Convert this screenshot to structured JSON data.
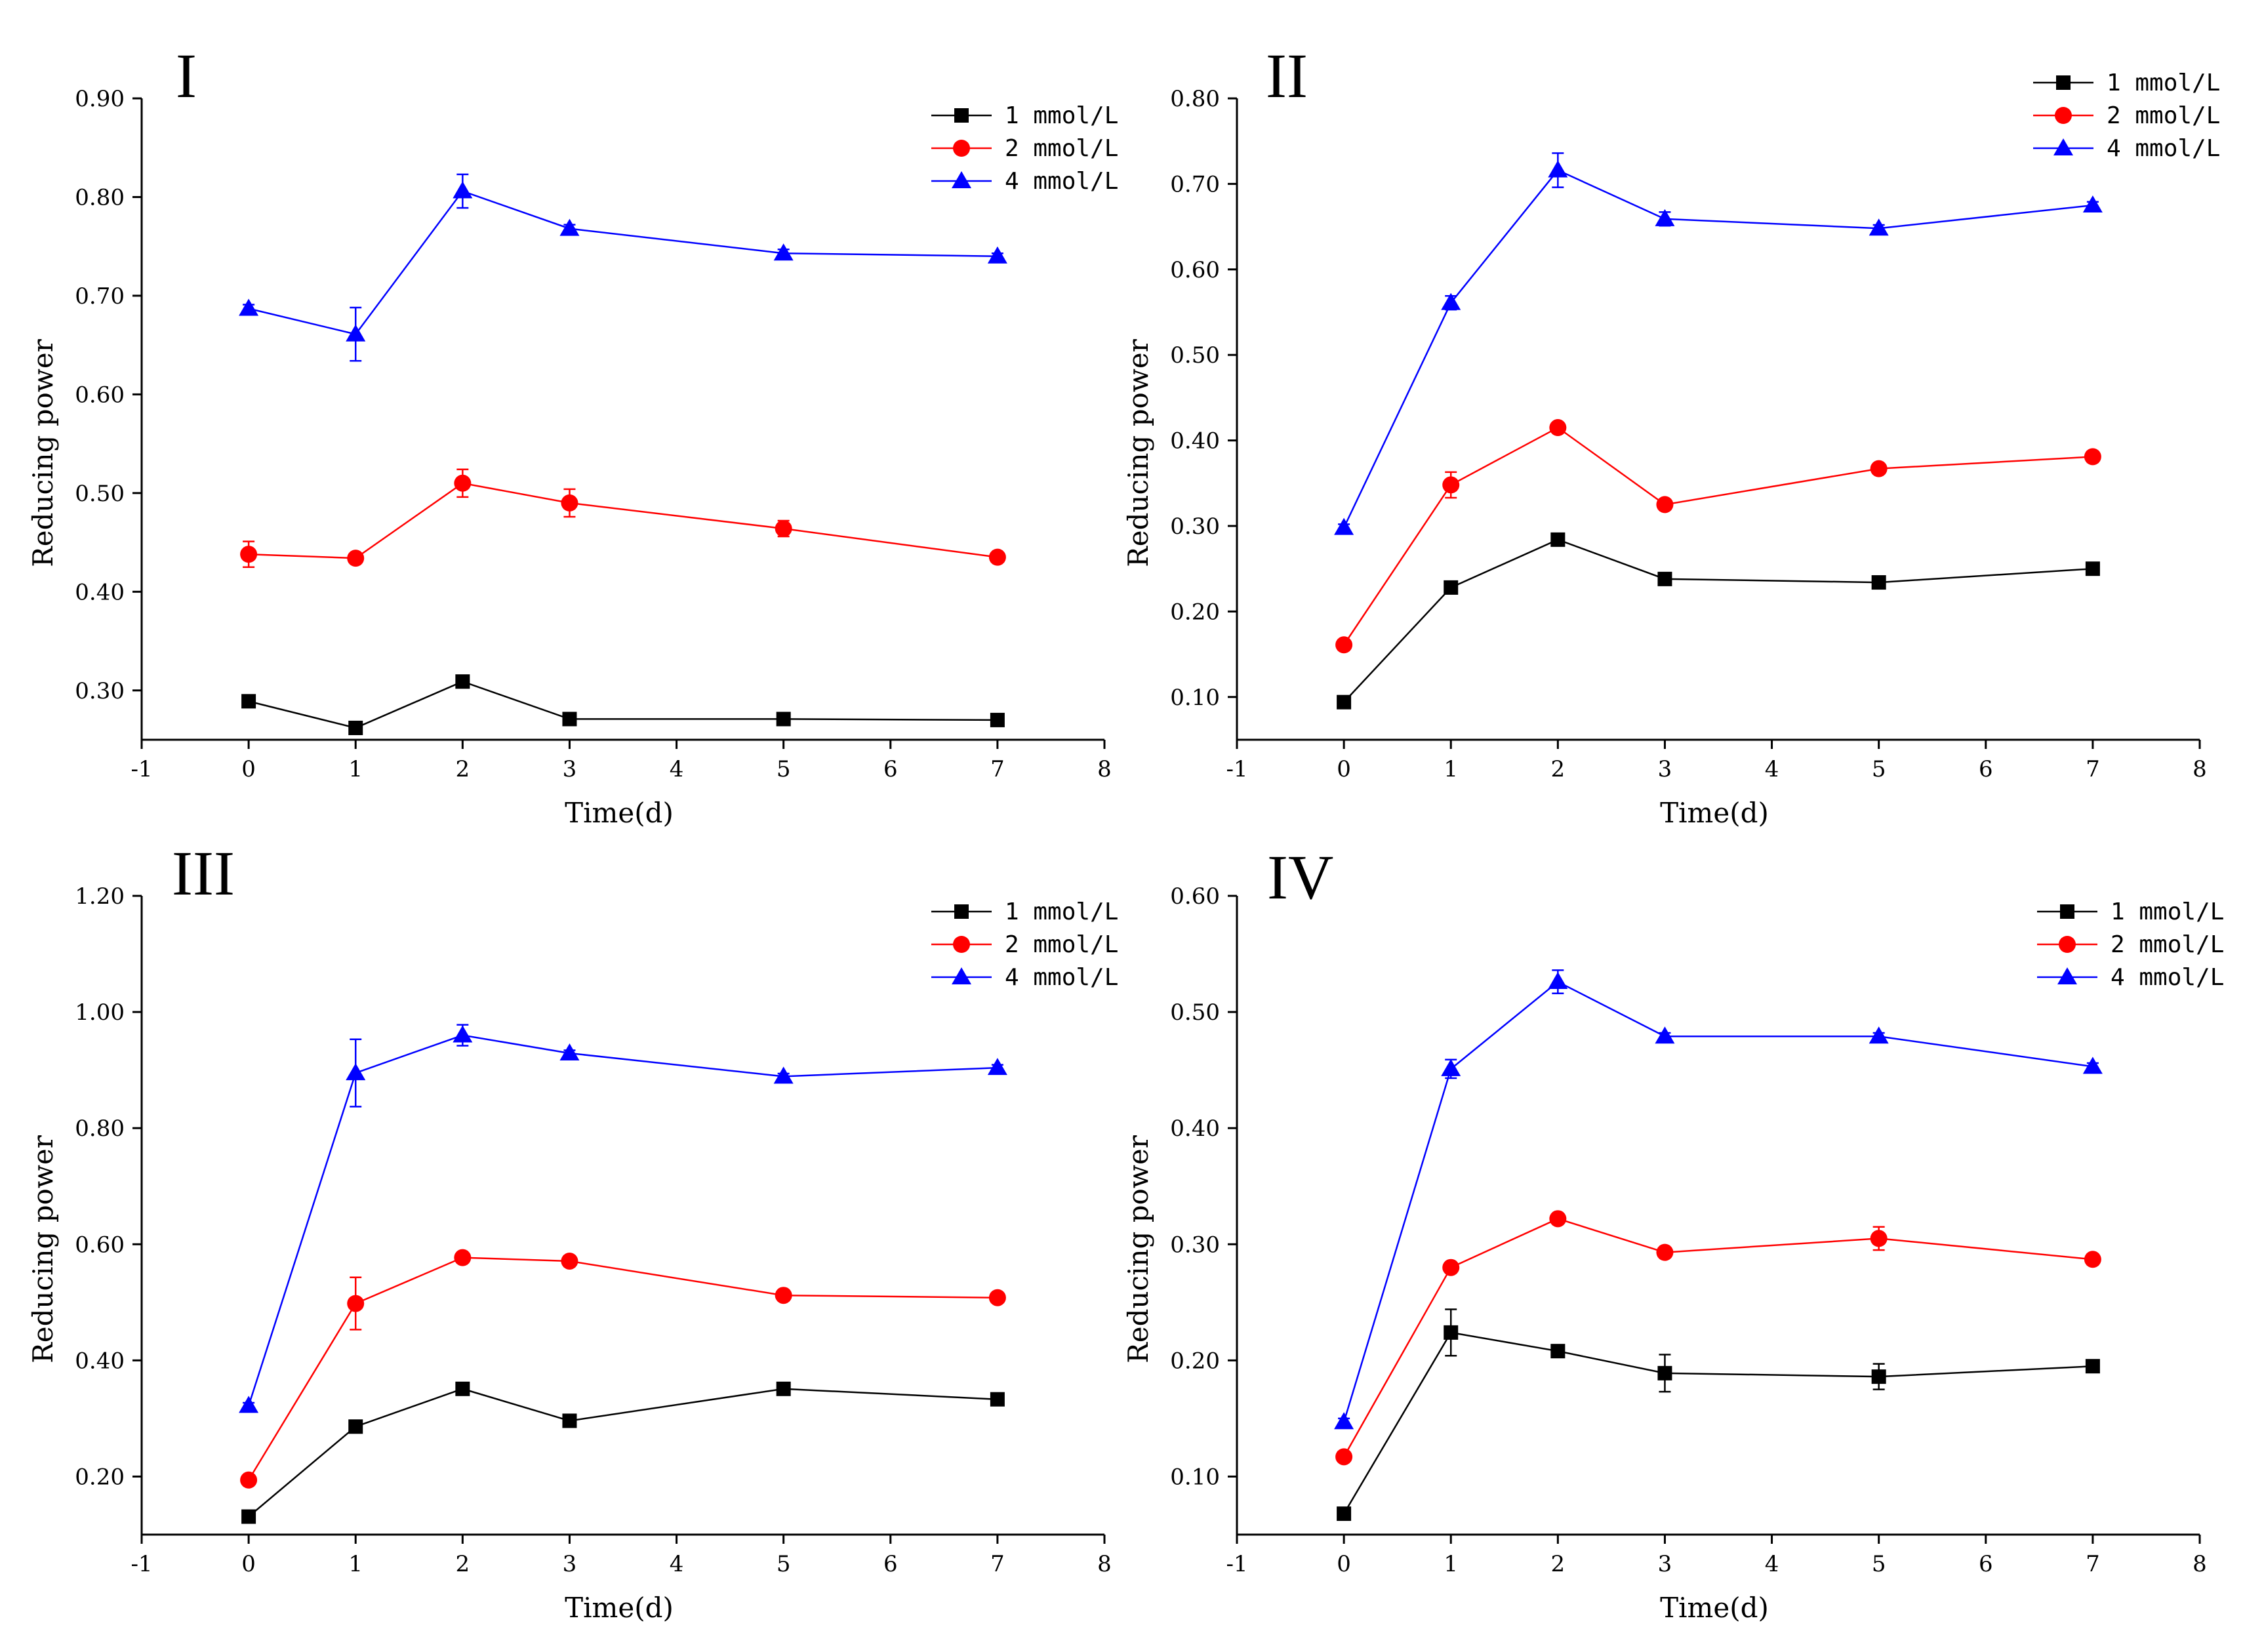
{
  "colors": {
    "s1": "#000000",
    "s2": "#ff0000",
    "s3": "#0000ff"
  },
  "chart_data": [
    {
      "type": "line",
      "title": "I",
      "xlabel": "Time(d)",
      "ylabel": "Reducing power",
      "xlim": [
        -1,
        8
      ],
      "ylim": [
        0.25,
        0.9
      ],
      "xticks": [
        "-1",
        "0",
        "1",
        "2",
        "3",
        "4",
        "5",
        "6",
        "7",
        "8"
      ],
      "yticks": [
        "0.30",
        "0.40",
        "0.50",
        "0.60",
        "0.70",
        "0.80",
        "0.90"
      ],
      "ytick_values": [
        0.3,
        0.4,
        0.5,
        0.6,
        0.7,
        0.8,
        0.9
      ],
      "x": [
        0,
        1,
        2,
        3,
        5,
        7
      ],
      "series": [
        {
          "name": "1 mmol/L",
          "marker": "square",
          "color": "#000000",
          "values": [
            0.289,
            0.262,
            0.309,
            0.271,
            0.271,
            0.27
          ],
          "errors": [
            0.003,
            0.003,
            0.006,
            0.003,
            0.002,
            0.003
          ]
        },
        {
          "name": "2 mmol/L",
          "marker": "circle",
          "color": "#ff0000",
          "values": [
            0.438,
            0.434,
            0.51,
            0.49,
            0.464,
            0.435
          ],
          "errors": [
            0.013,
            0.004,
            0.014,
            0.014,
            0.008,
            0.004
          ]
        },
        {
          "name": "4 mmol/L",
          "marker": "triangle",
          "color": "#0000ff",
          "values": [
            0.687,
            0.661,
            0.806,
            0.768,
            0.743,
            0.74
          ],
          "errors": [
            0.004,
            0.027,
            0.017,
            0.004,
            0.004,
            0.003
          ]
        }
      ]
    },
    {
      "type": "line",
      "title": "II",
      "xlabel": "Time(d)",
      "ylabel": "Reducing power",
      "xlim": [
        -1,
        8
      ],
      "ylim": [
        0.05,
        0.8
      ],
      "xticks": [
        "-1",
        "0",
        "1",
        "2",
        "3",
        "4",
        "5",
        "6",
        "7",
        "8"
      ],
      "yticks": [
        "0.10",
        "0.20",
        "0.30",
        "0.40",
        "0.50",
        "0.60",
        "0.70",
        "0.80"
      ],
      "ytick_values": [
        0.1,
        0.2,
        0.3,
        0.4,
        0.5,
        0.6,
        0.7,
        0.8
      ],
      "x": [
        0,
        1,
        2,
        3,
        5,
        7
      ],
      "series": [
        {
          "name": "1 mmol/L",
          "marker": "square",
          "color": "#000000",
          "values": [
            0.094,
            0.228,
            0.284,
            0.238,
            0.234,
            0.25
          ],
          "errors": [
            0.004,
            0.004,
            0.004,
            0.004,
            0.004,
            0.004
          ]
        },
        {
          "name": "2 mmol/L",
          "marker": "circle",
          "color": "#ff0000",
          "values": [
            0.161,
            0.348,
            0.415,
            0.325,
            0.367,
            0.381
          ],
          "errors": [
            0.004,
            0.015,
            0.004,
            0.004,
            0.004,
            0.004
          ]
        },
        {
          "name": "4 mmol/L",
          "marker": "triangle",
          "color": "#0000ff",
          "values": [
            0.298,
            0.561,
            0.716,
            0.659,
            0.648,
            0.675
          ],
          "errors": [
            0.004,
            0.008,
            0.02,
            0.008,
            0.004,
            0.004
          ]
        }
      ]
    },
    {
      "type": "line",
      "title": "III",
      "xlabel": "Time(d)",
      "ylabel": "Reducing power",
      "xlim": [
        -1,
        8
      ],
      "ylim": [
        0.1,
        1.2
      ],
      "xticks": [
        "-1",
        "0",
        "1",
        "2",
        "3",
        "4",
        "5",
        "6",
        "7",
        "8"
      ],
      "yticks": [
        "0.20",
        "0.40",
        "0.60",
        "0.80",
        "1.00",
        "1.20"
      ],
      "ytick_values": [
        0.2,
        0.4,
        0.6,
        0.8,
        1.0,
        1.2
      ],
      "x": [
        0,
        1,
        2,
        3,
        5,
        7
      ],
      "series": [
        {
          "name": "1 mmol/L",
          "marker": "square",
          "color": "#000000",
          "values": [
            0.131,
            0.286,
            0.351,
            0.296,
            0.351,
            0.333
          ],
          "errors": [
            0.004,
            0.005,
            0.005,
            0.005,
            0.005,
            0.005
          ]
        },
        {
          "name": "2 mmol/L",
          "marker": "circle",
          "color": "#ff0000",
          "values": [
            0.194,
            0.498,
            0.577,
            0.571,
            0.512,
            0.508
          ],
          "errors": [
            0.005,
            0.045,
            0.005,
            0.005,
            0.005,
            0.005
          ]
        },
        {
          "name": "4 mmol/L",
          "marker": "triangle",
          "color": "#0000ff",
          "values": [
            0.322,
            0.895,
            0.96,
            0.929,
            0.889,
            0.904
          ],
          "errors": [
            0.005,
            0.058,
            0.018,
            0.005,
            0.005,
            0.005
          ]
        }
      ]
    },
    {
      "type": "line",
      "title": "IV",
      "xlabel": "Time(d)",
      "ylabel": "Reducing power",
      "xlim": [
        -1,
        8
      ],
      "ylim": [
        0.05,
        0.6
      ],
      "xticks": [
        "-1",
        "0",
        "1",
        "2",
        "3",
        "4",
        "5",
        "6",
        "7",
        "8"
      ],
      "yticks": [
        "0.10",
        "0.20",
        "0.30",
        "0.40",
        "0.50",
        "0.60"
      ],
      "ytick_values": [
        0.1,
        0.2,
        0.3,
        0.4,
        0.5,
        0.6
      ],
      "x": [
        0,
        1,
        2,
        3,
        5,
        7
      ],
      "series": [
        {
          "name": "1 mmol/L",
          "marker": "square",
          "color": "#000000",
          "values": [
            0.068,
            0.224,
            0.208,
            0.189,
            0.186,
            0.195
          ],
          "errors": [
            0.002,
            0.02,
            0.003,
            0.016,
            0.011,
            0.003
          ]
        },
        {
          "name": "2 mmol/L",
          "marker": "circle",
          "color": "#ff0000",
          "values": [
            0.117,
            0.28,
            0.322,
            0.293,
            0.305,
            0.287
          ],
          "errors": [
            0.003,
            0.003,
            0.003,
            0.003,
            0.01,
            0.003
          ]
        },
        {
          "name": "4 mmol/L",
          "marker": "triangle",
          "color": "#0000ff",
          "values": [
            0.147,
            0.451,
            0.526,
            0.479,
            0.479,
            0.453
          ],
          "errors": [
            0.003,
            0.008,
            0.01,
            0.003,
            0.003,
            0.003
          ]
        }
      ]
    }
  ]
}
